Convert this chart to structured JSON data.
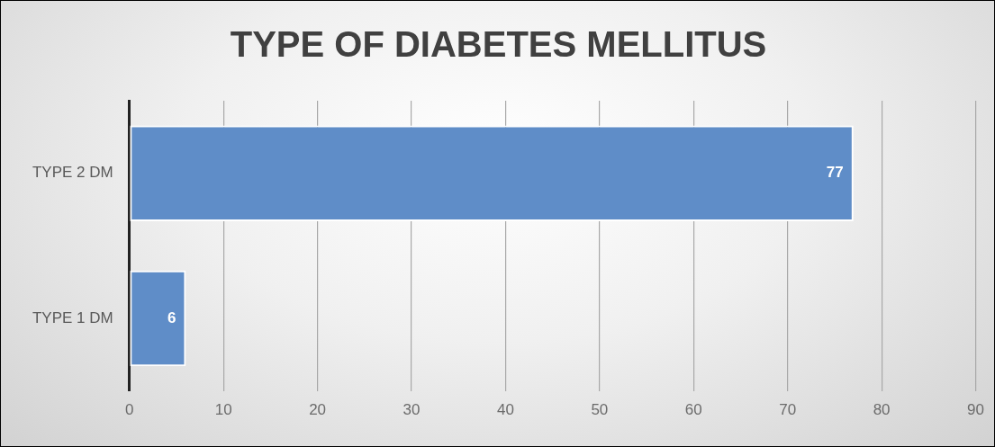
{
  "chart_data": {
    "type": "bar",
    "orientation": "horizontal",
    "title": "TYPE OF DIABETES MELLITUS",
    "categories": [
      "TYPE 2 DM",
      "TYPE 1 DM"
    ],
    "values": [
      77,
      6
    ],
    "color": "#5f8dc8",
    "xlim": [
      0,
      90
    ],
    "xticks": [
      0,
      10,
      20,
      30,
      40,
      50,
      60,
      70,
      80,
      90
    ],
    "grid": "x",
    "data_labels": true,
    "legend": false
  }
}
